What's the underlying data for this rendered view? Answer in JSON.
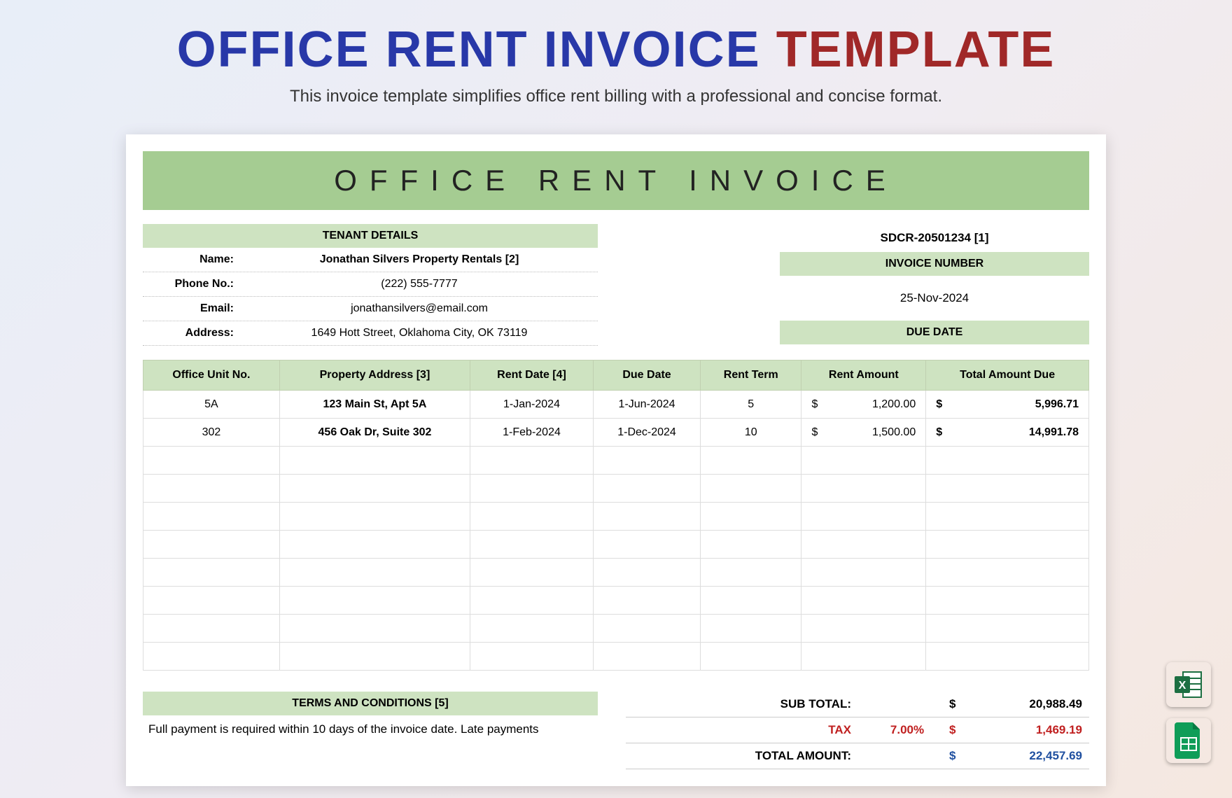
{
  "page": {
    "title_part1": "OFFICE RENT INVOICE",
    "title_part2": "TEMPLATE",
    "subtitle": "This invoice template simplifies office rent billing with a professional and concise format."
  },
  "colors": {
    "header_bg": "#a5cc92",
    "section_bg": "#cee3c1",
    "title_blue": "#2838a8",
    "title_red": "#a02828",
    "tax_red": "#c02020",
    "total_blue": "#2050a0"
  },
  "invoice": {
    "doc_title": "OFFICE RENT INVOICE",
    "tenant_section_label": "TENANT DETAILS",
    "tenant": {
      "name_label": "Name:",
      "name": "Jonathan Silvers Property Rentals  [2]",
      "phone_label": "Phone No.:",
      "phone": "(222) 555-7777",
      "email_label": "Email:",
      "email": "jonathansilvers@email.com",
      "address_label": "Address:",
      "address": "1649 Hott Street, Oklahoma City, OK 73119"
    },
    "meta": {
      "invoice_ref": "SDCR-20501234 [1]",
      "invoice_number_label": "INVOICE NUMBER",
      "due_date_value": "25-Nov-2024",
      "due_date_label": "DUE DATE"
    },
    "table": {
      "columns": [
        "Office Unit No.",
        "Property Address [3]",
        "Rent Date [4]",
        "Due Date",
        "Rent Term",
        "Rent Amount",
        "Total Amount Due"
      ],
      "rows": [
        {
          "unit": "5A",
          "address": "123 Main St, Apt 5A",
          "rent_date": "1-Jan-2024",
          "due_date": "1-Jun-2024",
          "term": "5",
          "amount": "1,200.00",
          "total": "5,996.71"
        },
        {
          "unit": "302",
          "address": "456 Oak Dr, Suite 302",
          "rent_date": "1-Feb-2024",
          "due_date": "1-Dec-2024",
          "term": "10",
          "amount": "1,500.00",
          "total": "14,991.78"
        }
      ],
      "empty_rows": 8
    },
    "summary": {
      "subtotal_label": "SUB TOTAL:",
      "subtotal": "20,988.49",
      "tax_label": "TAX",
      "tax_pct": "7.00%",
      "tax_amount": "1,469.19",
      "total_label": "TOTAL AMOUNT:",
      "total": "22,457.69"
    },
    "terms": {
      "label": "TERMS AND CONDITIONS [5]",
      "text": "Full payment is required within 10 days of the invoice date. Late payments"
    }
  },
  "icons": {
    "excel_color": "#1d6f42",
    "sheets_color": "#0f9d58"
  }
}
